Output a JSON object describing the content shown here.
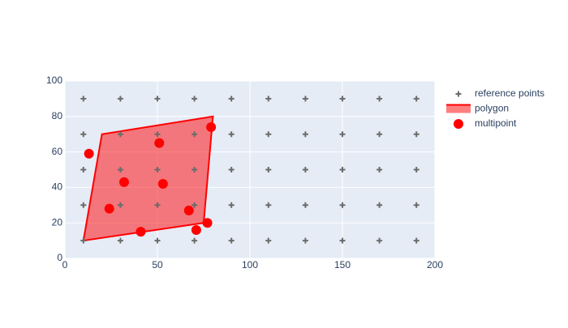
{
  "chart_data": {
    "type": "scatter",
    "xlim": [
      0,
      200
    ],
    "ylim": [
      0,
      100
    ],
    "xticks": [
      0,
      50,
      100,
      150,
      200
    ],
    "yticks": [
      0,
      20,
      40,
      60,
      80,
      100
    ],
    "grid": true,
    "series": [
      {
        "name": "reference points",
        "color": "#6b6b6b",
        "marker": "cross",
        "x": [
          10,
          30,
          50,
          70,
          90,
          110,
          130,
          150,
          170,
          190,
          10,
          30,
          50,
          70,
          90,
          110,
          130,
          150,
          170,
          190,
          10,
          30,
          50,
          70,
          90,
          110,
          130,
          150,
          170,
          190,
          10,
          30,
          50,
          70,
          90,
          110,
          130,
          150,
          170,
          190,
          10,
          30,
          50,
          70,
          90,
          110,
          130,
          150,
          170,
          190
        ],
        "y": [
          10,
          10,
          10,
          10,
          10,
          10,
          10,
          10,
          10,
          10,
          30,
          30,
          30,
          30,
          30,
          30,
          30,
          30,
          30,
          30,
          50,
          50,
          50,
          50,
          50,
          50,
          50,
          50,
          50,
          50,
          70,
          70,
          70,
          70,
          70,
          70,
          70,
          70,
          70,
          70,
          90,
          90,
          90,
          90,
          90,
          90,
          90,
          90,
          90,
          90
        ]
      },
      {
        "name": "polygon",
        "color": "#ff0000",
        "marker": "fill",
        "x": [
          10,
          20,
          80,
          75,
          10
        ],
        "y": [
          10,
          70,
          80,
          20,
          10
        ]
      },
      {
        "name": "multipoint",
        "color": "#ff0000",
        "marker": "circle",
        "x": [
          13,
          24,
          32,
          41,
          51,
          53,
          67,
          71,
          77,
          79
        ],
        "y": [
          59,
          28,
          43,
          15,
          65,
          42,
          27,
          16,
          20,
          74
        ]
      }
    ]
  }
}
